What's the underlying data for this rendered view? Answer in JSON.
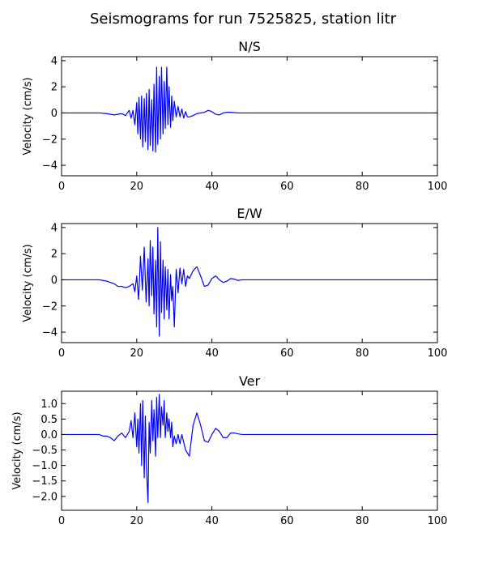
{
  "figure": {
    "title": "Seismograms for run 7525825, station litr"
  },
  "colors": {
    "trace": "#0000ff",
    "axes": "#000000",
    "background": "#ffffff"
  },
  "chart_data": [
    {
      "type": "line",
      "title": "N/S",
      "xlabel": "",
      "ylabel": "Velocity (cm/s)",
      "xlim": [
        0,
        100
      ],
      "ylim": [
        -4.8,
        4.3
      ],
      "xticks": [
        0,
        20,
        40,
        60,
        80,
        100
      ],
      "yticks": [
        -4,
        -2,
        0,
        2,
        4
      ],
      "yticklabels": [
        "−4",
        "−2",
        "0",
        "2",
        "4"
      ],
      "grid": false,
      "legend": "none",
      "series": [
        {
          "x": [
            0,
            10,
            12,
            14,
            16,
            17,
            18,
            18.5,
            19,
            19.5,
            20,
            20.3,
            20.6,
            21,
            21.3,
            21.6,
            22,
            22.3,
            22.6,
            23,
            23.3,
            23.6,
            24,
            24.3,
            24.6,
            25,
            25.3,
            25.6,
            26,
            26.3,
            26.6,
            27,
            27.3,
            27.6,
            28,
            28.3,
            28.6,
            29,
            29.3,
            29.6,
            30,
            30.5,
            31,
            31.5,
            32,
            32.5,
            33,
            33.5,
            34,
            35,
            36,
            37,
            38,
            39,
            40,
            41,
            42,
            43,
            44,
            45,
            47,
            50,
            55,
            60,
            70,
            80,
            90,
            100
          ],
          "y": [
            0,
            0,
            -0.05,
            -0.15,
            -0.05,
            -0.2,
            0.2,
            -0.4,
            0.2,
            -0.9,
            0.8,
            -1.6,
            1.2,
            -2.0,
            1.3,
            -2.6,
            1.1,
            -2.2,
            1.5,
            -2.8,
            1.8,
            -2.5,
            1.0,
            -2.9,
            2.2,
            -3.0,
            3.5,
            -2.4,
            2.8,
            -2.0,
            3.5,
            -1.6,
            2.4,
            -1.2,
            3.5,
            -0.9,
            2.0,
            -1.1,
            1.3,
            -0.6,
            0.9,
            -0.3,
            0.5,
            -0.3,
            0.3,
            -0.4,
            0.1,
            -0.3,
            -0.3,
            -0.2,
            -0.05,
            0,
            0.05,
            0.2,
            0.1,
            -0.1,
            -0.15,
            0,
            0.05,
            0.05,
            0,
            0,
            0,
            0,
            0,
            0,
            0,
            0
          ]
        }
      ]
    },
    {
      "type": "line",
      "title": "E/W",
      "xlabel": "",
      "ylabel": "Velocity (cm/s)",
      "xlim": [
        0,
        100
      ],
      "ylim": [
        -4.8,
        4.3
      ],
      "xticks": [
        0,
        20,
        40,
        60,
        80,
        100
      ],
      "yticks": [
        -4,
        -2,
        0,
        2,
        4
      ],
      "yticklabels": [
        "−4",
        "−2",
        "0",
        "2",
        "4"
      ],
      "grid": false,
      "legend": "none",
      "series": [
        {
          "x": [
            0,
            10,
            11,
            12,
            13,
            14,
            15,
            16,
            17,
            18,
            19,
            19.5,
            20,
            20.5,
            21,
            21.5,
            22,
            22.5,
            23,
            23.3,
            23.6,
            24,
            24.3,
            24.6,
            25,
            25.3,
            25.6,
            26,
            26.3,
            26.6,
            27,
            27.3,
            27.6,
            28,
            28.3,
            28.6,
            29,
            29.3,
            29.6,
            30,
            30.5,
            31,
            31.5,
            32,
            32.5,
            33,
            33.5,
            34,
            35,
            36,
            37,
            38,
            39,
            40,
            41,
            42,
            43,
            44,
            45,
            46,
            47,
            48,
            50,
            55,
            60,
            70,
            80,
            90,
            100
          ],
          "y": [
            0,
            0,
            -0.05,
            -0.1,
            -0.2,
            -0.3,
            -0.5,
            -0.5,
            -0.6,
            -0.5,
            -0.3,
            -0.9,
            0.3,
            -1.5,
            1.8,
            -0.8,
            2.5,
            -1.7,
            1.6,
            -2.0,
            3.0,
            -1.2,
            2.5,
            -2.6,
            1.5,
            -3.6,
            4.0,
            -4.3,
            2.9,
            -2.5,
            1.5,
            -3.0,
            1.0,
            -2.3,
            0.8,
            -3.0,
            0.4,
            -1.6,
            -0.5,
            -3.6,
            0.8,
            -1.0,
            0.9,
            -0.3,
            0.8,
            -0.5,
            0.3,
            0.1,
            0.7,
            1.0,
            0.3,
            -0.5,
            -0.4,
            0.1,
            0.3,
            0.0,
            -0.2,
            -0.1,
            0.1,
            0.05,
            -0.05,
            0,
            0,
            0,
            0,
            0,
            0,
            0,
            0
          ]
        }
      ]
    },
    {
      "type": "line",
      "title": "Ver",
      "xlabel": "",
      "ylabel": "Velocity (cm/s)",
      "xlim": [
        0,
        100
      ],
      "ylim": [
        -2.45,
        1.4
      ],
      "xticks": [
        0,
        20,
        40,
        60,
        80,
        100
      ],
      "yticks": [
        -2.0,
        -1.5,
        -1.0,
        -0.5,
        0.0,
        0.5,
        1.0
      ],
      "yticklabels": [
        "−2.0",
        "−1.5",
        "−1.0",
        "−0.5",
        "0.0",
        "0.5",
        "1.0"
      ],
      "grid": false,
      "legend": "none",
      "series": [
        {
          "x": [
            0,
            10,
            11,
            12,
            13,
            14,
            15,
            16,
            17,
            18,
            18.5,
            19,
            19.5,
            20,
            20.3,
            20.6,
            21,
            21.3,
            21.6,
            22,
            22.3,
            22.6,
            23,
            23.3,
            23.6,
            24,
            24.3,
            24.6,
            25,
            25.3,
            25.6,
            26,
            26.3,
            26.6,
            27,
            27.3,
            27.6,
            28,
            28.3,
            28.6,
            29,
            29.3,
            29.6,
            30,
            30.5,
            31,
            31.5,
            32,
            33,
            34,
            35,
            36,
            37,
            38,
            39,
            40,
            41,
            42,
            43,
            44,
            45,
            46,
            47,
            48,
            50,
            55,
            60,
            70,
            80,
            90,
            100
          ],
          "y": [
            0,
            0,
            -0.05,
            -0.05,
            -0.1,
            -0.2,
            -0.05,
            0.05,
            -0.1,
            0.1,
            0.45,
            -0.1,
            0.7,
            -0.4,
            0.5,
            -0.6,
            1.0,
            -1.0,
            1.1,
            -1.4,
            0.6,
            -1.1,
            -2.2,
            0.4,
            -0.6,
            1.1,
            -0.2,
            0.8,
            -0.7,
            1.2,
            -0.1,
            1.3,
            -0.1,
            0.9,
            0.3,
            1.1,
            -0.1,
            0.7,
            0.1,
            0.5,
            -0.1,
            0.4,
            -0.4,
            -0.05,
            -0.3,
            0.0,
            -0.3,
            0.0,
            -0.5,
            -0.7,
            0.3,
            0.7,
            0.3,
            -0.2,
            -0.25,
            0.0,
            0.2,
            0.1,
            -0.1,
            -0.1,
            0.05,
            0.05,
            0.02,
            0,
            0,
            0,
            0,
            0,
            0,
            0,
            0
          ]
        }
      ]
    }
  ]
}
